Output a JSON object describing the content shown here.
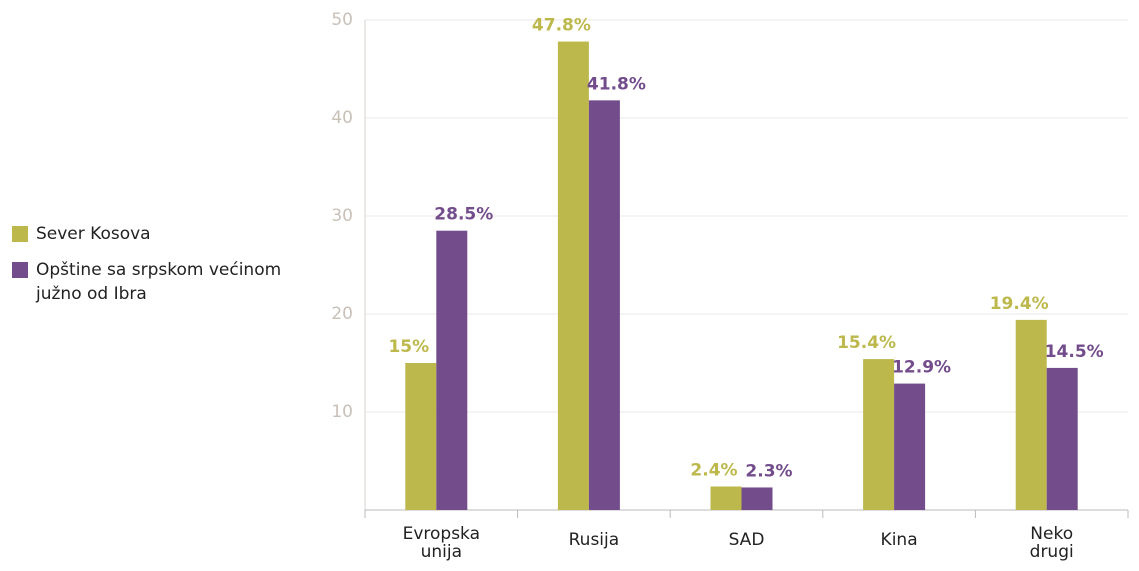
{
  "chart_data": {
    "type": "bar",
    "categories": [
      "Evropska unija",
      "Rusija",
      "SAD",
      "Kina",
      "Neko drugi"
    ],
    "series": [
      {
        "name": "Sever Kosova",
        "color": "#bdb84c",
        "values": [
          15,
          47.8,
          2.4,
          15.4,
          19.4
        ],
        "value_labels": [
          "15%",
          "47.8%",
          "2.4%",
          "15.4%",
          "19.4%"
        ]
      },
      {
        "name": "Opštine sa srpskom većinom južno od Ibra",
        "color": "#734c8c",
        "values": [
          28.5,
          41.8,
          2.3,
          12.9,
          14.5
        ],
        "value_labels": [
          "28.5%",
          "41.8%",
          "2.3%",
          "12.9%",
          "14.5%"
        ]
      }
    ],
    "ylim": [
      0,
      50
    ],
    "yticks": [
      10,
      20,
      30,
      40,
      50
    ],
    "grid": true,
    "legend": "left"
  }
}
